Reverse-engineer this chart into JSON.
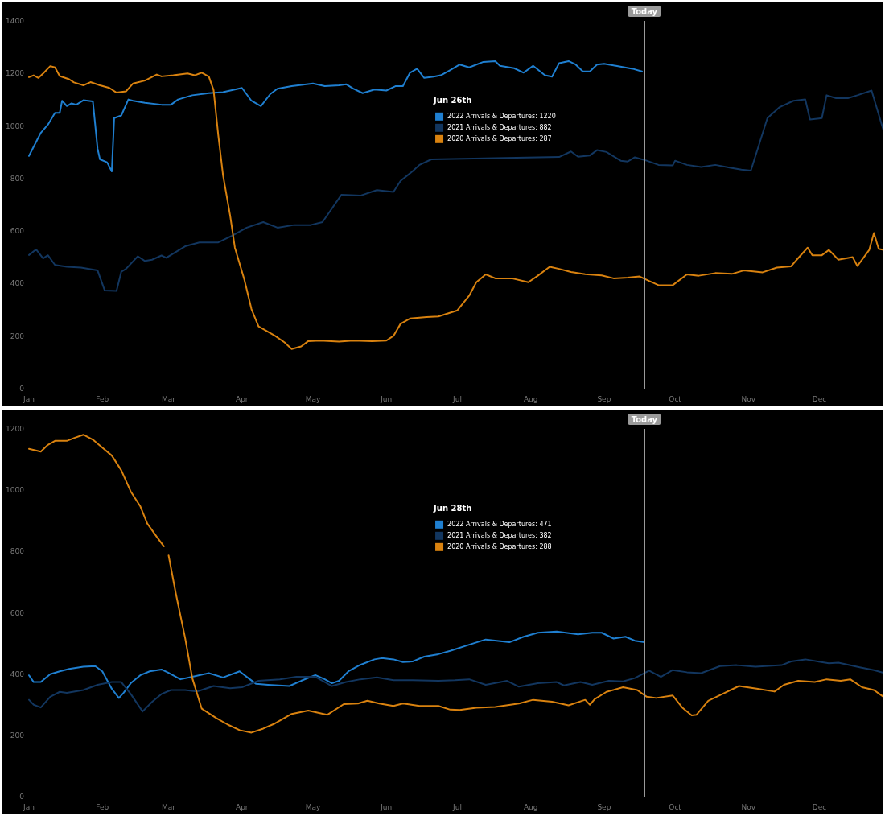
{
  "chart_data": [
    {
      "type": "line",
      "legend_title": "Jun 26th",
      "legend": "center",
      "grid": false,
      "marker": "none",
      "line_style": "solid",
      "xlim": [
        "--01-01",
        "--12-28"
      ],
      "xticks": [
        {
          "value": "--01-01",
          "label": "Jan"
        },
        {
          "value": "--02-01",
          "label": "Feb"
        },
        {
          "value": "--03-01",
          "label": "Mar"
        },
        {
          "value": "--04-01",
          "label": "Apr"
        },
        {
          "value": "--05-01",
          "label": "May"
        },
        {
          "value": "--06-01",
          "label": "Jun"
        },
        {
          "value": "--07-01",
          "label": "Jul"
        },
        {
          "value": "--08-01",
          "label": "Aug"
        },
        {
          "value": "--09-01",
          "label": "Sep"
        },
        {
          "value": "--10-01",
          "label": "Oct"
        },
        {
          "value": "--11-01",
          "label": "Nov"
        },
        {
          "value": "--12-01",
          "label": "Dec"
        }
      ],
      "ylim": [
        0,
        1400
      ],
      "yticks": [
        0,
        200,
        400,
        600,
        800,
        1000,
        1200,
        1400
      ],
      "ref_lines": [
        {
          "axis": "x",
          "value": "--09-18",
          "label": "Today",
          "color": "#9a9a9a"
        }
      ],
      "series": [
        {
          "name": "2022 Arrivals & Departures: 1220",
          "color": "#1f7fd0",
          "x": [
            "--01-01",
            "--01-06",
            "--01-09",
            "--01-12",
            "--01-14",
            "--01-15",
            "--01-17",
            "--01-19",
            "--01-21",
            "--01-24",
            "--01-28",
            "--01-30",
            "--01-31",
            "--02-03",
            "--02-05",
            "--02-06",
            "--02-09",
            "--02-12",
            "--02-14",
            "--02-19",
            "--02-26",
            "--03-02",
            "--03-05",
            "--03-11",
            "--03-18",
            "--03-24",
            "--04-01",
            "--04-05",
            "--04-09",
            "--04-13",
            "--04-16",
            "--04-22",
            "--05-01",
            "--05-06",
            "--05-12",
            "--05-15",
            "--05-18",
            "--05-22",
            "--05-27",
            "--06-01",
            "--06-05",
            "--06-08",
            "--06-11",
            "--06-14",
            "--06-17",
            "--06-21",
            "--06-24",
            "--06-28",
            "--07-02",
            "--07-06",
            "--07-12",
            "--07-17",
            "--07-19",
            "--07-25",
            "--07-29",
            "--08-02",
            "--08-07",
            "--08-10",
            "--08-13",
            "--08-17",
            "--08-20",
            "--08-23",
            "--08-26",
            "--08-29",
            "--09-01",
            "--09-06",
            "--09-13",
            "--09-17"
          ],
          "values": [
            886,
            974,
            1005,
            1050,
            1050,
            1096,
            1076,
            1086,
            1081,
            1098,
            1094,
            913,
            873,
            862,
            827,
            1030,
            1040,
            1101,
            1096,
            1088,
            1081,
            1081,
            1101,
            1117,
            1125,
            1129,
            1145,
            1096,
            1076,
            1122,
            1142,
            1152,
            1162,
            1152,
            1155,
            1159,
            1142,
            1125,
            1139,
            1135,
            1152,
            1152,
            1203,
            1218,
            1183,
            1188,
            1193,
            1213,
            1234,
            1223,
            1244,
            1247,
            1229,
            1220,
            1203,
            1229,
            1193,
            1188,
            1239,
            1247,
            1234,
            1208,
            1208,
            1234,
            1237,
            1229,
            1218,
            1208
          ]
        },
        {
          "name": "2021 Arrivals & Departures: 882",
          "color": "#12365f",
          "x": [
            "--01-01",
            "--01-04",
            "--01-07",
            "--01-09",
            "--01-12",
            "--01-17",
            "--01-23",
            "--01-30",
            "--02-02",
            "--02-07",
            "--02-09",
            "--02-11",
            "--02-16",
            "--02-19",
            "--02-22",
            "--02-26",
            "--02-28",
            "--03-08",
            "--03-14",
            "--03-22",
            "--03-28",
            "--04-03",
            "--04-10",
            "--04-16",
            "--04-23",
            "--04-30",
            "--05-05",
            "--05-13",
            "--05-21",
            "--05-28",
            "--06-04",
            "--06-07",
            "--06-12",
            "--06-15",
            "--06-20",
            "--08-13",
            "--08-18",
            "--08-21",
            "--08-26",
            "--08-29",
            "--09-02",
            "--09-08",
            "--09-11",
            "--09-14",
            "--09-19",
            "--09-24",
            "--09-30",
            "--10-01",
            "--10-06",
            "--10-12",
            "--10-18",
            "--10-24",
            "--10-29",
            "--11-02",
            "--11-09",
            "--11-14",
            "--11-20",
            "--11-25",
            "--11-27",
            "--12-02",
            "--12-04",
            "--12-08",
            "--12-13",
            "--12-17",
            "--12-23",
            "--12-28"
          ],
          "values": [
            509,
            530,
            496,
            508,
            471,
            464,
            461,
            450,
            374,
            372,
            445,
            456,
            504,
            486,
            491,
            507,
            498,
            542,
            557,
            557,
            583,
            613,
            634,
            613,
            623,
            623,
            634,
            738,
            735,
            756,
            749,
            791,
            827,
            852,
            873,
            882,
            903,
            883,
            888,
            908,
            901,
            868,
            865,
            881,
            868,
            852,
            850,
            868,
            852,
            844,
            852,
            842,
            834,
            830,
            1030,
            1071,
            1096,
            1101,
            1025,
            1030,
            1117,
            1106,
            1106,
            1117,
            1135,
            984
          ]
        },
        {
          "name": "2020 Arrivals & Departures: 287",
          "color": "#d9820f",
          "x": [
            "--01-01",
            "--01-03",
            "--01-05",
            "--01-07",
            "--01-10",
            "--01-12",
            "--01-14",
            "--01-18",
            "--01-20",
            "--01-24",
            "--01-27",
            "--01-31",
            "--02-04",
            "--02-07",
            "--02-11",
            "--02-14",
            "--02-19",
            "--02-24",
            "--02-26",
            "--03-03",
            "--03-09",
            "--03-12",
            "--03-15",
            "--03-18",
            "--03-20",
            "--03-22",
            "--03-24",
            "--03-27",
            "--03-29",
            "--04-02",
            "--04-05",
            "--04-08",
            "--04-11",
            "--04-15",
            "--04-19",
            "--04-22",
            "--04-26",
            "--04-29",
            "--05-04",
            "--05-12",
            "--05-18",
            "--05-26",
            "--06-01",
            "--06-04",
            "--06-07",
            "--06-11",
            "--06-18",
            "--06-23",
            "--07-01",
            "--07-06",
            "--07-09",
            "--07-13",
            "--07-17",
            "--07-24",
            "--07-31",
            "--08-04",
            "--08-09",
            "--08-13",
            "--08-18",
            "--08-24",
            "--08-31",
            "--09-05",
            "--09-11",
            "--09-16",
            "--09-20",
            "--09-24",
            "--09-30",
            "--10-06",
            "--10-11",
            "--10-18",
            "--10-25",
            "--10-30",
            "--11-07",
            "--11-13",
            "--11-19",
            "--11-22",
            "--11-26",
            "--11-28",
            "--12-02",
            "--12-05",
            "--12-09",
            "--12-15",
            "--12-17",
            "--12-19",
            "--12-22",
            "--12-24",
            "--12-26",
            "--12-28"
          ],
          "values": [
            1186,
            1193,
            1183,
            1200,
            1228,
            1223,
            1190,
            1178,
            1166,
            1155,
            1167,
            1155,
            1145,
            1127,
            1132,
            1162,
            1173,
            1196,
            1189,
            1193,
            1200,
            1193,
            1203,
            1188,
            1137,
            964,
            812,
            659,
            537,
            415,
            303,
            237,
            222,
            201,
            176,
            151,
            161,
            181,
            183,
            179,
            183,
            181,
            183,
            201,
            247,
            267,
            273,
            275,
            298,
            354,
            405,
            435,
            420,
            420,
            405,
            430,
            464,
            456,
            444,
            436,
            431,
            420,
            423,
            427,
            410,
            394,
            394,
            435,
            430,
            440,
            437,
            450,
            443,
            461,
            466,
            497,
            537,
            508,
            508,
            528,
            491,
            501,
            467,
            491,
            528,
            593,
            532,
            528
          ]
        }
      ]
    },
    {
      "type": "line",
      "legend_title": "Jun 28th",
      "legend": "center",
      "grid": false,
      "marker": "none",
      "line_style": "solid",
      "xlim": [
        "--01-01",
        "--12-28"
      ],
      "xticks": [
        {
          "value": "--01-01",
          "label": "Jan"
        },
        {
          "value": "--02-01",
          "label": "Feb"
        },
        {
          "value": "--03-01",
          "label": "Mar"
        },
        {
          "value": "--04-01",
          "label": "Apr"
        },
        {
          "value": "--05-01",
          "label": "May"
        },
        {
          "value": "--06-01",
          "label": "Jun"
        },
        {
          "value": "--07-01",
          "label": "Jul"
        },
        {
          "value": "--08-01",
          "label": "Aug"
        },
        {
          "value": "--09-01",
          "label": "Sep"
        },
        {
          "value": "--10-01",
          "label": "Oct"
        },
        {
          "value": "--11-01",
          "label": "Nov"
        },
        {
          "value": "--12-01",
          "label": "Dec"
        }
      ],
      "ylim": [
        0,
        1200
      ],
      "yticks": [
        0,
        200,
        400,
        600,
        800,
        1000,
        1200
      ],
      "ref_lines": [
        {
          "axis": "x",
          "value": "--09-18",
          "label": "Today",
          "color": "#9a9a9a"
        }
      ],
      "series": [
        {
          "name": "2022 Arrivals & Departures: 471",
          "color": "#1f7fd0",
          "x": [
            "--01-01",
            "--01-03",
            "--01-06",
            "--01-10",
            "--01-14",
            "--01-18",
            "--01-24",
            "--01-29",
            "--02-01",
            "--02-05",
            "--02-08",
            "--02-10",
            "--02-13",
            "--02-17",
            "--02-21",
            "--02-26",
            "--03-01",
            "--03-06",
            "--03-11",
            "--03-18",
            "--03-24",
            "--03-31",
            "--04-04",
            "--04-07",
            "--04-12",
            "--04-21",
            "--04-26",
            "--05-02",
            "--05-06",
            "--05-09",
            "--05-12",
            "--05-16",
            "--05-21",
            "--05-27",
            "--05-30",
            "--06-04",
            "--06-08",
            "--06-12",
            "--06-17",
            "--06-23",
            "--06-28",
            "--07-06",
            "--07-13",
            "--07-23",
            "--07-29",
            "--08-04",
            "--08-12",
            "--08-21",
            "--08-27",
            "--08-31",
            "--09-05",
            "--09-10",
            "--09-14",
            "--09-18"
          ],
          "values": [
            396,
            374,
            374,
            400,
            409,
            417,
            424,
            426,
            409,
            352,
            322,
            339,
            370,
            396,
            409,
            415,
            404,
            383,
            391,
            403,
            389,
            409,
            385,
            368,
            365,
            361,
            378,
            397,
            383,
            370,
            378,
            409,
            430,
            448,
            452,
            448,
            439,
            441,
            457,
            465,
            476,
            496,
            513,
            504,
            522,
            535,
            539,
            530,
            535,
            535,
            516,
            522,
            509,
            504
          ]
        },
        {
          "name": "2021 Arrivals & Departures: 382",
          "color": "#12365f",
          "x": [
            "--01-01",
            "--01-03",
            "--01-06",
            "--01-10",
            "--01-14",
            "--01-17",
            "--01-24",
            "--01-30",
            "--02-05",
            "--02-09",
            "--02-13",
            "--02-18",
            "--02-22",
            "--02-26",
            "--03-02",
            "--03-08",
            "--03-13",
            "--03-20",
            "--03-27",
            "--04-01",
            "--04-08",
            "--04-17",
            "--04-24",
            "--05-02",
            "--05-06",
            "--05-09",
            "--05-15",
            "--05-21",
            "--05-28",
            "--06-04",
            "--06-12",
            "--06-23",
            "--06-30",
            "--07-06",
            "--07-13",
            "--07-22",
            "--07-27",
            "--08-04",
            "--08-12",
            "--08-15",
            "--08-22",
            "--08-27",
            "--09-03",
            "--09-09",
            "--09-14",
            "--09-20",
            "--09-25",
            "--09-30",
            "--10-06",
            "--10-12",
            "--10-20",
            "--10-27",
            "--11-04",
            "--11-15",
            "--11-19",
            "--11-25",
            "--12-05",
            "--12-09",
            "--12-18",
            "--12-24",
            "--12-28"
          ],
          "values": [
            316,
            300,
            291,
            326,
            342,
            339,
            348,
            365,
            374,
            374,
            335,
            278,
            309,
            335,
            348,
            348,
            343,
            361,
            354,
            357,
            378,
            383,
            391,
            391,
            374,
            361,
            374,
            383,
            389,
            380,
            380,
            378,
            380,
            383,
            365,
            378,
            359,
            370,
            374,
            363,
            374,
            365,
            378,
            376,
            387,
            411,
            391,
            413,
            406,
            403,
            426,
            429,
            424,
            429,
            441,
            448,
            435,
            437,
            422,
            413,
            404
          ]
        },
        {
          "name": "2020 Arrivals & Departures: 288",
          "color": "#d9820f",
          "x": [
            "--01-01",
            "--01-06",
            "--01-09",
            "--01-12",
            "--01-17",
            "--01-20",
            "--01-24",
            "--01-28",
            "--02-01",
            "--02-05",
            "--02-09",
            "--02-13",
            "--02-17",
            "--02-20",
            "--02-24",
            "--02-27",
            "--02-28",
            "--03-01",
            "--03-04",
            "--03-08",
            "--03-11",
            "--03-15",
            "--03-21",
            "--03-26",
            "--03-31",
            "--04-05",
            "--04-10",
            "--04-15",
            "--04-22",
            "--04-29",
            "--05-07",
            "--05-14",
            "--05-20",
            "--05-24",
            "--05-29",
            "--06-04",
            "--06-08",
            "--06-15",
            "--06-23",
            "--06-28",
            "--07-02",
            "--07-09",
            "--07-17",
            "--07-27",
            "--08-02",
            "--08-10",
            "--08-17",
            "--08-24",
            "--08-26",
            "--08-28",
            "--09-02",
            "--09-09",
            "--09-15",
            "--09-19",
            "--09-23",
            "--09-30",
            "--10-04",
            "--10-08",
            "--10-10",
            "--10-15",
            "--10-21",
            "--10-28",
            "--11-05",
            "--11-12",
            "--11-16",
            "--11-22",
            "--11-29",
            "--12-04",
            "--12-10",
            "--12-14",
            "--12-19",
            "--12-24",
            "--12-28"
          ],
          "values": [
            1135,
            1126,
            1148,
            1161,
            1161,
            1170,
            1181,
            1165,
            1139,
            1113,
            1065,
            996,
            948,
            891,
            848,
            817,
            null,
            787,
            665,
            517,
            387,
            287,
            257,
            235,
            217,
            209,
            222,
            239,
            270,
            281,
            267,
            302,
            304,
            313,
            304,
            296,
            304,
            296,
            296,
            284,
            283,
            290,
            293,
            304,
            316,
            310,
            298,
            316,
            300,
            318,
            342,
            357,
            348,
            326,
            322,
            330,
            291,
            265,
            267,
            313,
            335,
            361,
            352,
            343,
            365,
            378,
            374,
            383,
            378,
            383,
            357,
            348,
            326
          ]
        }
      ]
    }
  ]
}
